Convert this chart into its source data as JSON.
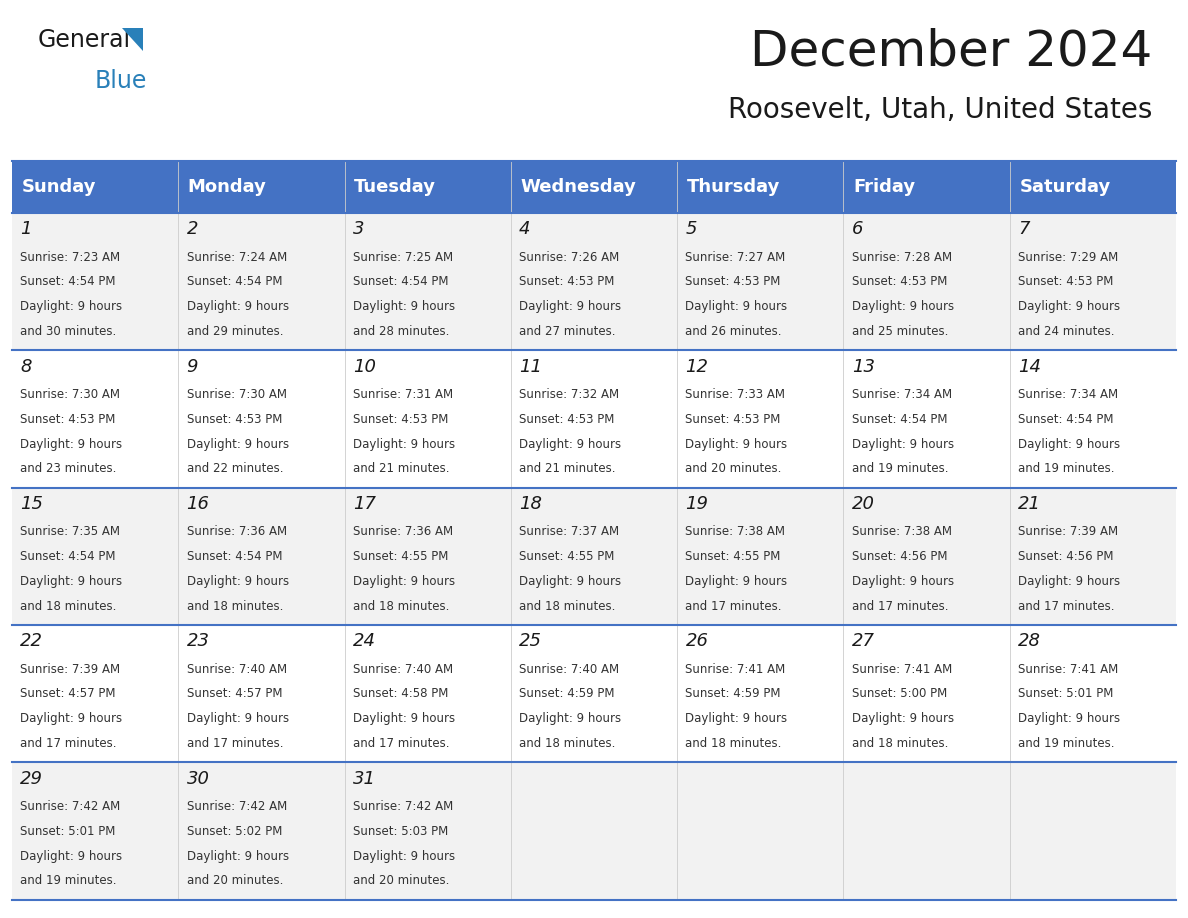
{
  "title": "December 2024",
  "subtitle": "Roosevelt, Utah, United States",
  "header_color": "#4472C4",
  "header_text_color": "#FFFFFF",
  "day_names": [
    "Sunday",
    "Monday",
    "Tuesday",
    "Wednesday",
    "Thursday",
    "Friday",
    "Saturday"
  ],
  "bg_color": "#FFFFFF",
  "cell_bg_odd": "#F2F2F2",
  "cell_bg_even": "#FFFFFF",
  "border_color": "#4472C4",
  "days": [
    {
      "day": 1,
      "col": 0,
      "row": 0,
      "sunrise": "7:23 AM",
      "sunset": "4:54 PM",
      "daylight": "9 hours and 30 minutes."
    },
    {
      "day": 2,
      "col": 1,
      "row": 0,
      "sunrise": "7:24 AM",
      "sunset": "4:54 PM",
      "daylight": "9 hours and 29 minutes."
    },
    {
      "day": 3,
      "col": 2,
      "row": 0,
      "sunrise": "7:25 AM",
      "sunset": "4:54 PM",
      "daylight": "9 hours and 28 minutes."
    },
    {
      "day": 4,
      "col": 3,
      "row": 0,
      "sunrise": "7:26 AM",
      "sunset": "4:53 PM",
      "daylight": "9 hours and 27 minutes."
    },
    {
      "day": 5,
      "col": 4,
      "row": 0,
      "sunrise": "7:27 AM",
      "sunset": "4:53 PM",
      "daylight": "9 hours and 26 minutes."
    },
    {
      "day": 6,
      "col": 5,
      "row": 0,
      "sunrise": "7:28 AM",
      "sunset": "4:53 PM",
      "daylight": "9 hours and 25 minutes."
    },
    {
      "day": 7,
      "col": 6,
      "row": 0,
      "sunrise": "7:29 AM",
      "sunset": "4:53 PM",
      "daylight": "9 hours and 24 minutes."
    },
    {
      "day": 8,
      "col": 0,
      "row": 1,
      "sunrise": "7:30 AM",
      "sunset": "4:53 PM",
      "daylight": "9 hours and 23 minutes."
    },
    {
      "day": 9,
      "col": 1,
      "row": 1,
      "sunrise": "7:30 AM",
      "sunset": "4:53 PM",
      "daylight": "9 hours and 22 minutes."
    },
    {
      "day": 10,
      "col": 2,
      "row": 1,
      "sunrise": "7:31 AM",
      "sunset": "4:53 PM",
      "daylight": "9 hours and 21 minutes."
    },
    {
      "day": 11,
      "col": 3,
      "row": 1,
      "sunrise": "7:32 AM",
      "sunset": "4:53 PM",
      "daylight": "9 hours and 21 minutes."
    },
    {
      "day": 12,
      "col": 4,
      "row": 1,
      "sunrise": "7:33 AM",
      "sunset": "4:53 PM",
      "daylight": "9 hours and 20 minutes."
    },
    {
      "day": 13,
      "col": 5,
      "row": 1,
      "sunrise": "7:34 AM",
      "sunset": "4:54 PM",
      "daylight": "9 hours and 19 minutes."
    },
    {
      "day": 14,
      "col": 6,
      "row": 1,
      "sunrise": "7:34 AM",
      "sunset": "4:54 PM",
      "daylight": "9 hours and 19 minutes."
    },
    {
      "day": 15,
      "col": 0,
      "row": 2,
      "sunrise": "7:35 AM",
      "sunset": "4:54 PM",
      "daylight": "9 hours and 18 minutes."
    },
    {
      "day": 16,
      "col": 1,
      "row": 2,
      "sunrise": "7:36 AM",
      "sunset": "4:54 PM",
      "daylight": "9 hours and 18 minutes."
    },
    {
      "day": 17,
      "col": 2,
      "row": 2,
      "sunrise": "7:36 AM",
      "sunset": "4:55 PM",
      "daylight": "9 hours and 18 minutes."
    },
    {
      "day": 18,
      "col": 3,
      "row": 2,
      "sunrise": "7:37 AM",
      "sunset": "4:55 PM",
      "daylight": "9 hours and 18 minutes."
    },
    {
      "day": 19,
      "col": 4,
      "row": 2,
      "sunrise": "7:38 AM",
      "sunset": "4:55 PM",
      "daylight": "9 hours and 17 minutes."
    },
    {
      "day": 20,
      "col": 5,
      "row": 2,
      "sunrise": "7:38 AM",
      "sunset": "4:56 PM",
      "daylight": "9 hours and 17 minutes."
    },
    {
      "day": 21,
      "col": 6,
      "row": 2,
      "sunrise": "7:39 AM",
      "sunset": "4:56 PM",
      "daylight": "9 hours and 17 minutes."
    },
    {
      "day": 22,
      "col": 0,
      "row": 3,
      "sunrise": "7:39 AM",
      "sunset": "4:57 PM",
      "daylight": "9 hours and 17 minutes."
    },
    {
      "day": 23,
      "col": 1,
      "row": 3,
      "sunrise": "7:40 AM",
      "sunset": "4:57 PM",
      "daylight": "9 hours and 17 minutes."
    },
    {
      "day": 24,
      "col": 2,
      "row": 3,
      "sunrise": "7:40 AM",
      "sunset": "4:58 PM",
      "daylight": "9 hours and 17 minutes."
    },
    {
      "day": 25,
      "col": 3,
      "row": 3,
      "sunrise": "7:40 AM",
      "sunset": "4:59 PM",
      "daylight": "9 hours and 18 minutes."
    },
    {
      "day": 26,
      "col": 4,
      "row": 3,
      "sunrise": "7:41 AM",
      "sunset": "4:59 PM",
      "daylight": "9 hours and 18 minutes."
    },
    {
      "day": 27,
      "col": 5,
      "row": 3,
      "sunrise": "7:41 AM",
      "sunset": "5:00 PM",
      "daylight": "9 hours and 18 minutes."
    },
    {
      "day": 28,
      "col": 6,
      "row": 3,
      "sunrise": "7:41 AM",
      "sunset": "5:01 PM",
      "daylight": "9 hours and 19 minutes."
    },
    {
      "day": 29,
      "col": 0,
      "row": 4,
      "sunrise": "7:42 AM",
      "sunset": "5:01 PM",
      "daylight": "9 hours and 19 minutes."
    },
    {
      "day": 30,
      "col": 1,
      "row": 4,
      "sunrise": "7:42 AM",
      "sunset": "5:02 PM",
      "daylight": "9 hours and 20 minutes."
    },
    {
      "day": 31,
      "col": 2,
      "row": 4,
      "sunrise": "7:42 AM",
      "sunset": "5:03 PM",
      "daylight": "9 hours and 20 minutes."
    }
  ]
}
